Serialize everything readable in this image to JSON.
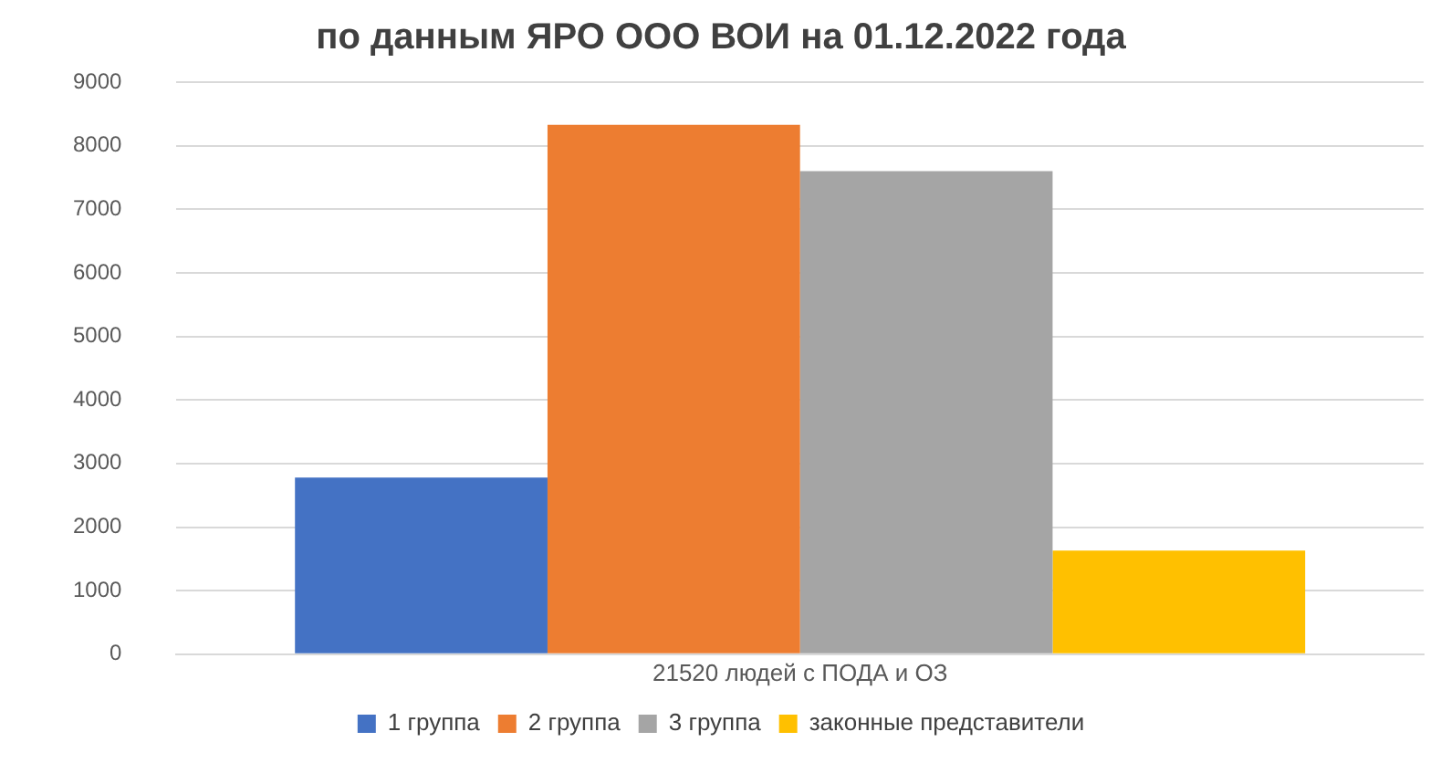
{
  "chart_data": {
    "type": "bar",
    "title": "по данным ЯРО ООО ВОИ на 01.12.2022 года",
    "categories": [
      "21520 людей с ПОДА и ОЗ"
    ],
    "series": [
      {
        "name": "1 группа",
        "color": "#4472c4",
        "values": [
          2780
        ]
      },
      {
        "name": "2 группа",
        "color": "#ed7d31",
        "values": [
          8330
        ]
      },
      {
        "name": "3 группа",
        "color": "#a5a5a5",
        "values": [
          7600
        ]
      },
      {
        "name": "законные представители",
        "color": "#ffc000",
        "values": [
          1630
        ]
      }
    ],
    "ylim": [
      0,
      9000
    ],
    "yticks": [
      0,
      1000,
      2000,
      3000,
      4000,
      5000,
      6000,
      7000,
      8000,
      9000
    ],
    "grid": "y",
    "legend": "bottom"
  }
}
